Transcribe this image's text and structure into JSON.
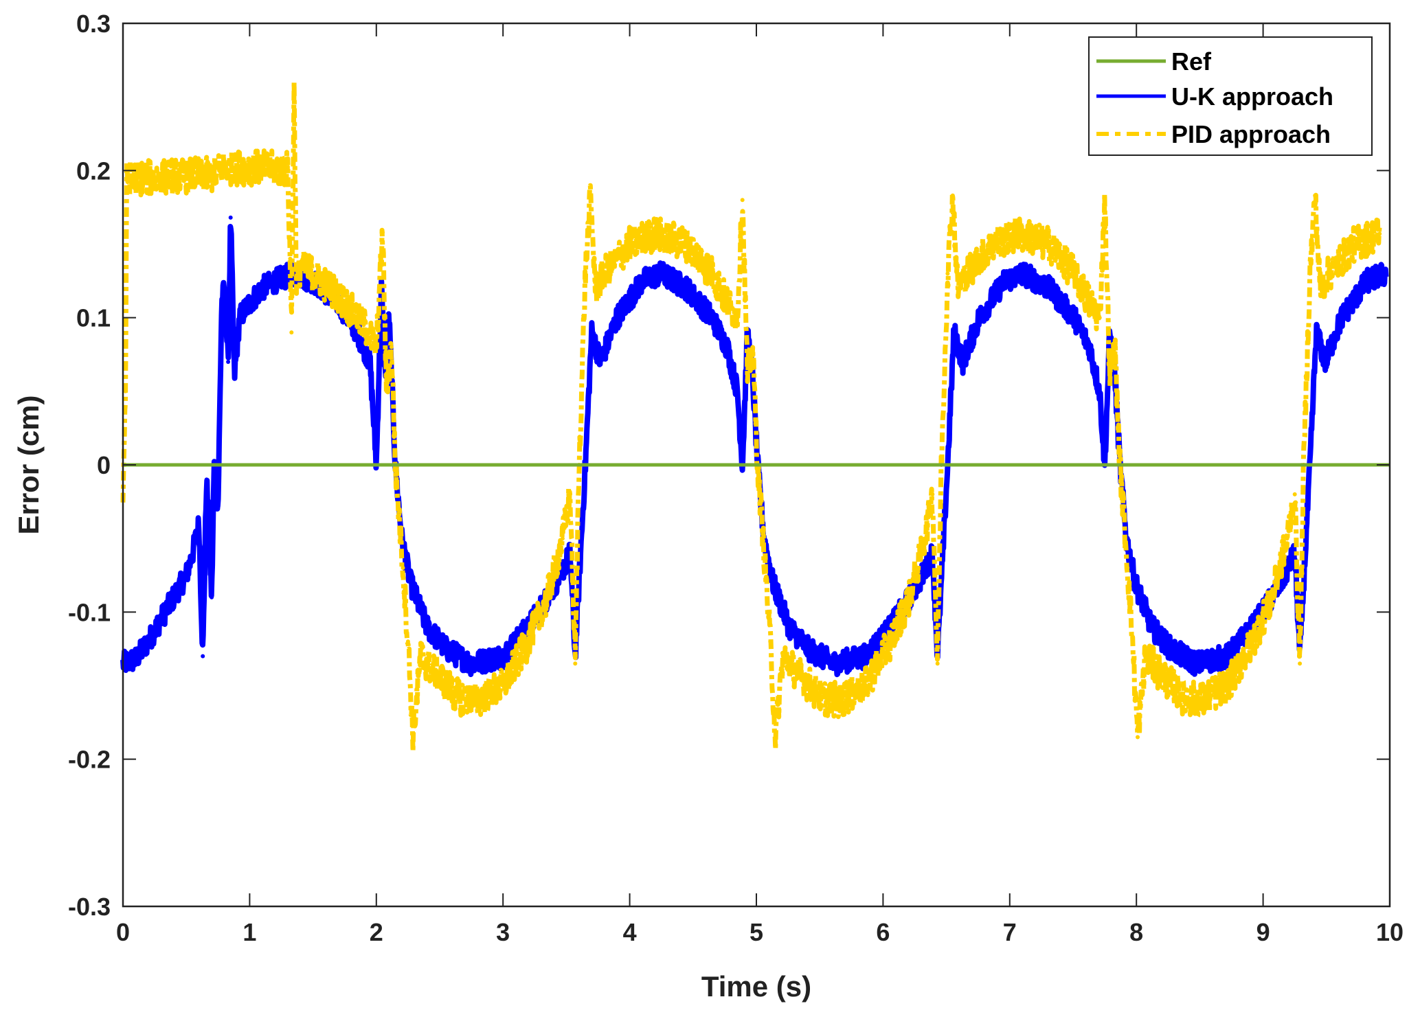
{
  "chart_data": {
    "type": "line",
    "title": "",
    "xlabel": "Time (s)",
    "ylabel": "Error (cm)",
    "xlim": [
      0,
      10
    ],
    "ylim": [
      -0.3,
      0.3
    ],
    "xticks": [
      "0",
      "1",
      "2",
      "3",
      "4",
      "5",
      "6",
      "7",
      "8",
      "9",
      "10"
    ],
    "xtick_values": [
      0,
      1,
      2,
      3,
      4,
      5,
      6,
      7,
      8,
      9,
      10
    ],
    "yticks": [
      "0.3",
      "0.2",
      "0.1",
      "0",
      "-0.1",
      "-0.2",
      "-0.3"
    ],
    "ytick_values": [
      0.3,
      0.2,
      0.1,
      0,
      -0.1,
      -0.2,
      -0.3
    ],
    "grid": false,
    "legend_position": "top-right",
    "legend": [
      "Ref",
      "U-K approach",
      "PID approach"
    ],
    "period": 2.86,
    "series": [
      {
        "name": "Ref",
        "color": "#77ac30",
        "style": "solid",
        "x": [
          0,
          10
        ],
        "y": [
          0,
          0
        ]
      },
      {
        "name": "U-K approach",
        "color": "#0000ff",
        "style": "solid",
        "noise": 0.008,
        "x": [
          0,
          0.1,
          0.2,
          0.3,
          0.4,
          0.5,
          0.55,
          0.6,
          0.63,
          0.66,
          0.7,
          0.72,
          0.75,
          0.78,
          0.8,
          0.83,
          0.85,
          0.88,
          0.92,
          1.0,
          1.1,
          1.2,
          1.35,
          1.5,
          1.7,
          1.85,
          1.95,
          2.0,
          2.04,
          2.07,
          2.1,
          2.15
        ],
        "y": [
          -0.135,
          -0.132,
          -0.12,
          -0.105,
          -0.09,
          -0.075,
          -0.06,
          -0.04,
          -0.13,
          -0.01,
          -0.09,
          0.0,
          -0.03,
          0.11,
          0.12,
          0.07,
          0.168,
          0.06,
          0.1,
          0.11,
          0.12,
          0.125,
          0.13,
          0.125,
          0.11,
          0.09,
          0.07,
          0.0,
          0.12,
          0.06,
          0.1,
          0.0
        ],
        "cycle_x": [
          0,
          0.05,
          0.12,
          0.25,
          0.4,
          0.6,
          0.85,
          1.05,
          1.2,
          1.3,
          1.38,
          1.42,
          1.45,
          1.5,
          1.55,
          1.62,
          1.75,
          1.95,
          2.1,
          2.3,
          2.5,
          2.62,
          2.7,
          2.74,
          2.78,
          2.82,
          2.86
        ],
        "cycle_y": [
          0.0,
          -0.05,
          -0.08,
          -0.11,
          -0.125,
          -0.135,
          -0.13,
          -0.11,
          -0.09,
          -0.075,
          -0.06,
          -0.13,
          -0.08,
          0.0,
          0.09,
          0.07,
          0.1,
          0.125,
          0.13,
          0.12,
          0.1,
          0.08,
          0.05,
          0.0,
          0.09,
          0.06,
          0.0
        ],
        "cycles_start": [
          2.15,
          5.01,
          7.87
        ],
        "cycles_end": 10
      },
      {
        "name": "PID approach",
        "color": "#ffd000",
        "style": "dashdot",
        "noise": 0.012,
        "x": [
          0,
          0.02,
          0.03,
          0.2,
          0.4,
          0.6,
          0.7,
          0.8,
          1.0,
          1.3,
          1.32,
          1.33,
          1.35,
          1.37,
          1.4,
          1.5,
          1.7,
          1.9,
          2.0,
          2.05,
          2.08,
          2.12,
          2.15
        ],
        "y": [
          -0.02,
          0.05,
          0.195,
          0.195,
          0.196,
          0.197,
          0.197,
          0.202,
          0.202,
          0.201,
          0.14,
          0.09,
          0.258,
          0.12,
          0.135,
          0.13,
          0.115,
          0.095,
          0.08,
          0.158,
          0.05,
          0.08,
          0.0
        ],
        "cycle_x": [
          0,
          0.06,
          0.1,
          0.14,
          0.2,
          0.3,
          0.5,
          0.65,
          0.85,
          1.05,
          1.2,
          1.32,
          1.38,
          1.42,
          1.45,
          1.5,
          1.54,
          1.58,
          1.65,
          1.85,
          2.05,
          2.3,
          2.5,
          2.62,
          2.7,
          2.74,
          2.78,
          2.82,
          2.86
        ],
        "cycle_y": [
          0.0,
          -0.07,
          -0.12,
          -0.185,
          -0.13,
          -0.14,
          -0.158,
          -0.16,
          -0.15,
          -0.12,
          -0.09,
          -0.05,
          -0.02,
          -0.135,
          0.0,
          0.13,
          0.183,
          0.12,
          0.13,
          0.15,
          0.157,
          0.15,
          0.13,
          0.11,
          0.1,
          0.18,
          0.06,
          0.08,
          0.0
        ],
        "cycles_start": [
          2.15,
          5.01,
          7.87
        ],
        "cycles_end": 10
      }
    ]
  }
}
